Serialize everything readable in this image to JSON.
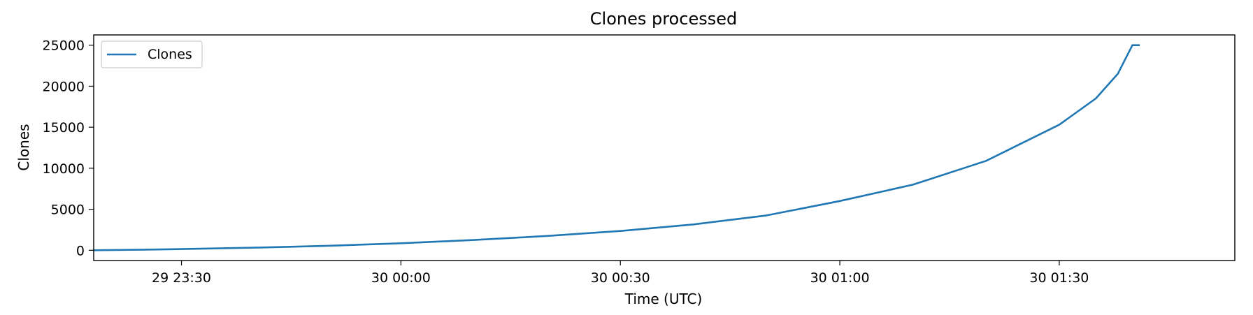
{
  "chart_data": {
    "type": "line",
    "title": "Clones processed",
    "xlabel": "Time (UTC)",
    "ylabel": "Clones",
    "x_axis_type": "time",
    "xlim": [
      "2023-01-29T23:18:00Z",
      "2023-01-30T01:54:00Z"
    ],
    "ylim": [
      -1250,
      26250
    ],
    "x_ticks": [
      {
        "value": "2023-01-29T23:30:00Z",
        "label": "29 23:30"
      },
      {
        "value": "2023-01-30T00:00:00Z",
        "label": "30 00:00"
      },
      {
        "value": "2023-01-30T00:30:00Z",
        "label": "30 00:30"
      },
      {
        "value": "2023-01-30T01:00:00Z",
        "label": "30 01:00"
      },
      {
        "value": "2023-01-30T01:30:00Z",
        "label": "30 01:30"
      }
    ],
    "y_ticks": [
      0,
      5000,
      10000,
      15000,
      20000,
      25000
    ],
    "grid": false,
    "legend": {
      "position": "top-left"
    },
    "colors": {
      "series": "#1f77b4"
    },
    "series": [
      {
        "name": "Clones",
        "points": [
          {
            "x": "2023-01-29T23:18:00Z",
            "y": 0
          },
          {
            "x": "2023-01-29T23:25:00Z",
            "y": 80
          },
          {
            "x": "2023-01-29T23:30:00Z",
            "y": 150
          },
          {
            "x": "2023-01-29T23:40:00Z",
            "y": 320
          },
          {
            "x": "2023-01-29T23:50:00Z",
            "y": 550
          },
          {
            "x": "2023-01-30T00:00:00Z",
            "y": 850
          },
          {
            "x": "2023-01-30T00:10:00Z",
            "y": 1250
          },
          {
            "x": "2023-01-30T00:20:00Z",
            "y": 1750
          },
          {
            "x": "2023-01-30T00:30:00Z",
            "y": 2350
          },
          {
            "x": "2023-01-30T00:40:00Z",
            "y": 3150
          },
          {
            "x": "2023-01-30T00:50:00Z",
            "y": 4250
          },
          {
            "x": "2023-01-30T01:00:00Z",
            "y": 6000
          },
          {
            "x": "2023-01-30T01:10:00Z",
            "y": 8000
          },
          {
            "x": "2023-01-30T01:20:00Z",
            "y": 10900
          },
          {
            "x": "2023-01-30T01:30:00Z",
            "y": 15300
          },
          {
            "x": "2023-01-30T01:35:00Z",
            "y": 18500
          },
          {
            "x": "2023-01-30T01:38:00Z",
            "y": 21500
          },
          {
            "x": "2023-01-30T01:40:00Z",
            "y": 25000
          },
          {
            "x": "2023-01-30T01:41:00Z",
            "y": 25000
          }
        ]
      }
    ]
  }
}
